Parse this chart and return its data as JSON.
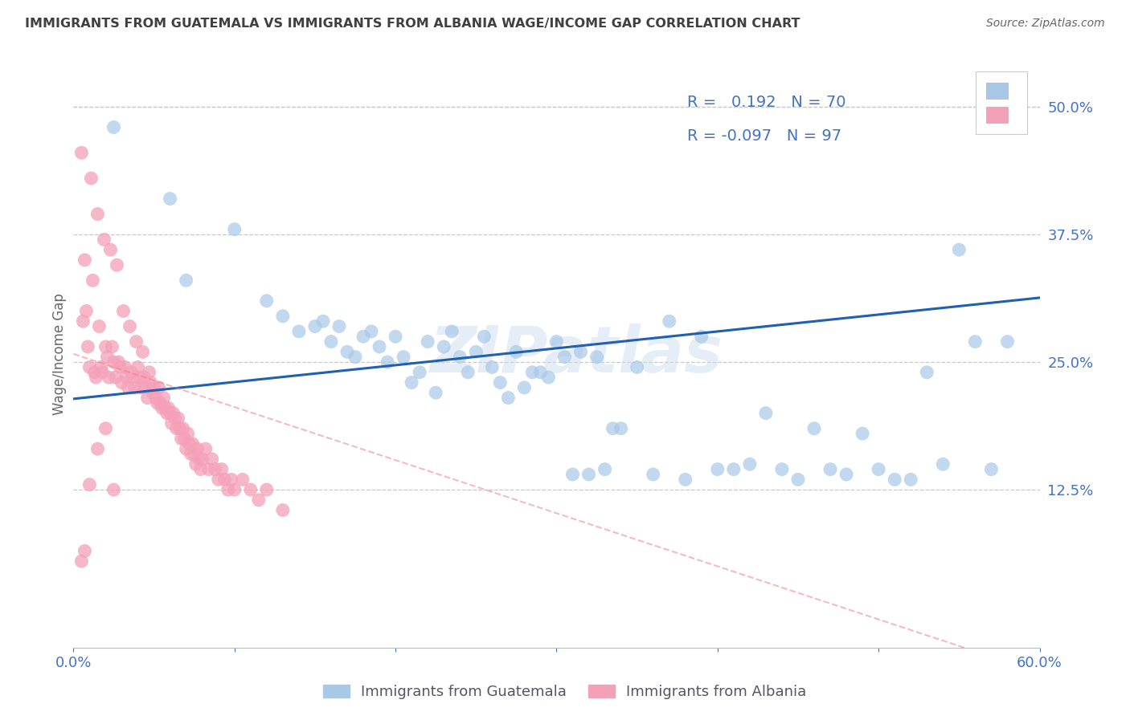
{
  "title": "IMMIGRANTS FROM GUATEMALA VS IMMIGRANTS FROM ALBANIA WAGE/INCOME GAP CORRELATION CHART",
  "source": "Source: ZipAtlas.com",
  "ylabel": "Wage/Income Gap",
  "xlim": [
    0.0,
    0.6
  ],
  "ylim": [
    -0.03,
    0.545
  ],
  "watermark": "ZIPatlas",
  "blue_color": "#a8c8e8",
  "pink_color": "#f4a0b8",
  "blue_line_color": "#2060b0",
  "pink_line_color": "#f08090",
  "axis_label_color": "#4472c4",
  "title_color": "#404040",
  "grid_color": "#c8c8c8",
  "legend_text_color": "#333355",
  "legend_r_color": "#4472c4",
  "legend_n_color": "#4472c4",
  "guatemala_x": [
    0.025,
    0.06,
    0.07,
    0.1,
    0.12,
    0.13,
    0.14,
    0.15,
    0.155,
    0.16,
    0.165,
    0.17,
    0.175,
    0.18,
    0.185,
    0.19,
    0.195,
    0.2,
    0.205,
    0.21,
    0.215,
    0.22,
    0.225,
    0.23,
    0.235,
    0.24,
    0.245,
    0.25,
    0.255,
    0.26,
    0.265,
    0.27,
    0.275,
    0.28,
    0.285,
    0.29,
    0.295,
    0.3,
    0.305,
    0.31,
    0.315,
    0.32,
    0.325,
    0.33,
    0.335,
    0.34,
    0.35,
    0.36,
    0.37,
    0.38,
    0.39,
    0.4,
    0.41,
    0.42,
    0.43,
    0.44,
    0.45,
    0.46,
    0.47,
    0.48,
    0.49,
    0.5,
    0.51,
    0.52,
    0.53,
    0.54,
    0.55,
    0.56,
    0.57,
    0.58
  ],
  "guatemala_y": [
    0.48,
    0.41,
    0.33,
    0.38,
    0.31,
    0.295,
    0.28,
    0.285,
    0.29,
    0.27,
    0.285,
    0.26,
    0.255,
    0.275,
    0.28,
    0.265,
    0.25,
    0.275,
    0.255,
    0.23,
    0.24,
    0.27,
    0.22,
    0.265,
    0.28,
    0.255,
    0.24,
    0.26,
    0.275,
    0.245,
    0.23,
    0.215,
    0.26,
    0.225,
    0.24,
    0.24,
    0.235,
    0.27,
    0.255,
    0.14,
    0.26,
    0.14,
    0.255,
    0.145,
    0.185,
    0.185,
    0.245,
    0.14,
    0.29,
    0.135,
    0.275,
    0.145,
    0.145,
    0.15,
    0.2,
    0.145,
    0.135,
    0.185,
    0.145,
    0.14,
    0.18,
    0.145,
    0.135,
    0.135,
    0.24,
    0.15,
    0.36,
    0.27,
    0.145,
    0.27
  ],
  "albania_x": [
    0.005,
    0.006,
    0.007,
    0.008,
    0.009,
    0.01,
    0.011,
    0.012,
    0.013,
    0.014,
    0.015,
    0.016,
    0.017,
    0.018,
    0.019,
    0.02,
    0.021,
    0.022,
    0.023,
    0.024,
    0.025,
    0.026,
    0.027,
    0.028,
    0.029,
    0.03,
    0.031,
    0.032,
    0.033,
    0.034,
    0.035,
    0.036,
    0.037,
    0.038,
    0.039,
    0.04,
    0.041,
    0.042,
    0.043,
    0.044,
    0.045,
    0.046,
    0.047,
    0.048,
    0.049,
    0.05,
    0.051,
    0.052,
    0.053,
    0.054,
    0.055,
    0.056,
    0.057,
    0.058,
    0.059,
    0.06,
    0.061,
    0.062,
    0.063,
    0.064,
    0.065,
    0.066,
    0.067,
    0.068,
    0.069,
    0.07,
    0.071,
    0.072,
    0.073,
    0.074,
    0.075,
    0.076,
    0.077,
    0.078,
    0.079,
    0.08,
    0.082,
    0.084,
    0.086,
    0.088,
    0.09,
    0.092,
    0.094,
    0.096,
    0.098,
    0.1,
    0.105,
    0.11,
    0.115,
    0.12,
    0.13,
    0.005,
    0.007,
    0.01,
    0.015,
    0.02,
    0.025
  ],
  "albania_y": [
    0.455,
    0.29,
    0.35,
    0.3,
    0.265,
    0.245,
    0.43,
    0.33,
    0.24,
    0.235,
    0.395,
    0.285,
    0.245,
    0.24,
    0.37,
    0.265,
    0.255,
    0.235,
    0.36,
    0.265,
    0.25,
    0.235,
    0.345,
    0.25,
    0.245,
    0.23,
    0.3,
    0.245,
    0.235,
    0.225,
    0.285,
    0.24,
    0.235,
    0.225,
    0.27,
    0.245,
    0.235,
    0.225,
    0.26,
    0.235,
    0.225,
    0.215,
    0.24,
    0.23,
    0.22,
    0.225,
    0.215,
    0.21,
    0.225,
    0.21,
    0.205,
    0.215,
    0.205,
    0.2,
    0.205,
    0.2,
    0.19,
    0.2,
    0.195,
    0.185,
    0.195,
    0.185,
    0.175,
    0.185,
    0.175,
    0.165,
    0.18,
    0.17,
    0.16,
    0.17,
    0.16,
    0.15,
    0.165,
    0.155,
    0.145,
    0.155,
    0.165,
    0.145,
    0.155,
    0.145,
    0.135,
    0.145,
    0.135,
    0.125,
    0.135,
    0.125,
    0.135,
    0.125,
    0.115,
    0.125,
    0.105,
    0.055,
    0.065,
    0.13,
    0.165,
    0.185,
    0.125
  ]
}
